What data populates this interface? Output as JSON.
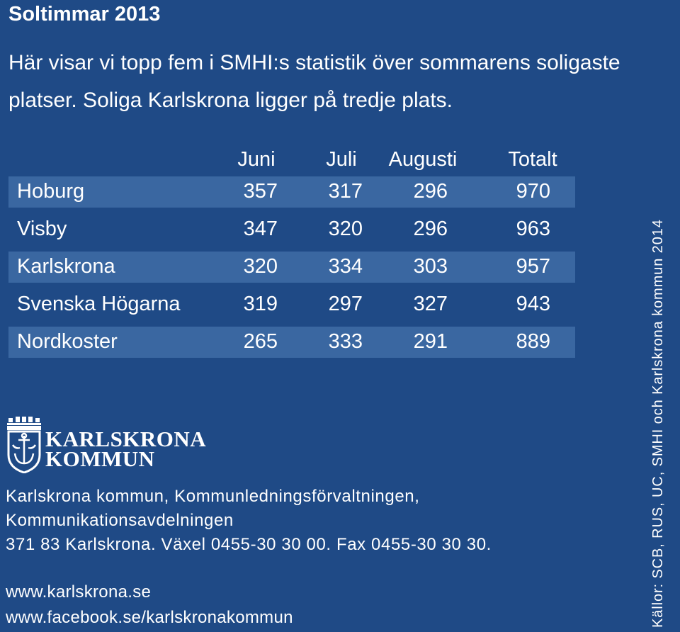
{
  "title": "Soltimmar 2013",
  "intro": {
    "line1": "Här visar vi topp fem i SMHI:s statistik över sommarens soligaste",
    "line2": "platser. Soliga Karlskrona ligger på tredje plats."
  },
  "table": {
    "headers": [
      "Juni",
      "Juli",
      "Augusti",
      "Totalt"
    ],
    "rows": [
      {
        "place": "Hoburg",
        "values": [
          "357",
          "317",
          "296",
          "970"
        ]
      },
      {
        "place": "Visby",
        "values": [
          "347",
          "320",
          "296",
          "963"
        ]
      },
      {
        "place": "Karlskrona",
        "values": [
          "320",
          "334",
          "303",
          "957"
        ]
      },
      {
        "place": "Svenska Högarna",
        "values": [
          "319",
          "297",
          "327",
          "943"
        ]
      },
      {
        "place": "Nordkoster",
        "values": [
          "265",
          "333",
          "291",
          "889"
        ]
      }
    ]
  },
  "logo": {
    "line1": "KARLSKRONA",
    "line2": "KOMMUN"
  },
  "contact": {
    "line1": "Karlskrona kommun, Kommunledningsförvaltningen,",
    "line2": "Kommunikationsavdelningen",
    "line3": "371 83 Karlskrona. Växel 0455-30 30 00. Fax 0455-30 30 30."
  },
  "web": {
    "site": "www.karlskrona.se",
    "facebook": "www.facebook.se/karlskronakommun"
  },
  "source": "Källor: SCB, RUS, UC, SMHI och Karlskrona kommun 2014",
  "colors": {
    "background": "#1f4a86",
    "row_shade": "#3a67a1",
    "text": "#ffffff"
  }
}
